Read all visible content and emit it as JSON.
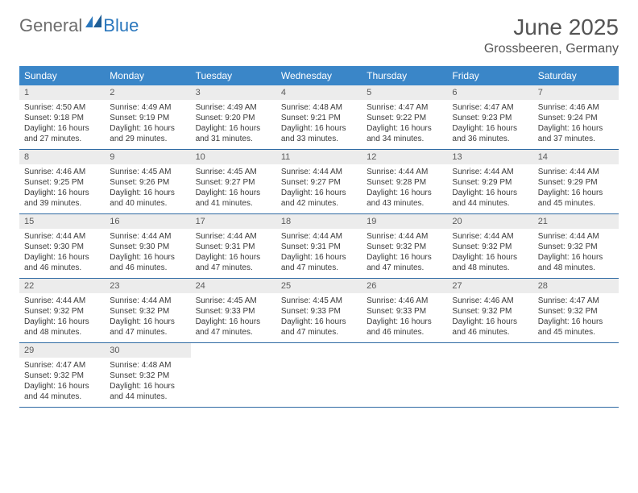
{
  "logo": {
    "general": "General",
    "blue": "Blue"
  },
  "title": "June 2025",
  "location": "Grossbeeren, Germany",
  "colors": {
    "header_bg": "#3a86c8",
    "header_fg": "#ffffff",
    "daynum_bg": "#ececec",
    "row_border": "#2f6aa3",
    "logo_gray": "#6d6d6d",
    "logo_blue": "#2a77bd",
    "text": "#3a3a3a",
    "title_color": "#545454",
    "page_bg": "#ffffff"
  },
  "weekdays": [
    "Sunday",
    "Monday",
    "Tuesday",
    "Wednesday",
    "Thursday",
    "Friday",
    "Saturday"
  ],
  "weeks": [
    [
      {
        "n": "1",
        "sunrise": "4:50 AM",
        "sunset": "9:18 PM",
        "daylight": "16 hours and 27 minutes."
      },
      {
        "n": "2",
        "sunrise": "4:49 AM",
        "sunset": "9:19 PM",
        "daylight": "16 hours and 29 minutes."
      },
      {
        "n": "3",
        "sunrise": "4:49 AM",
        "sunset": "9:20 PM",
        "daylight": "16 hours and 31 minutes."
      },
      {
        "n": "4",
        "sunrise": "4:48 AM",
        "sunset": "9:21 PM",
        "daylight": "16 hours and 33 minutes."
      },
      {
        "n": "5",
        "sunrise": "4:47 AM",
        "sunset": "9:22 PM",
        "daylight": "16 hours and 34 minutes."
      },
      {
        "n": "6",
        "sunrise": "4:47 AM",
        "sunset": "9:23 PM",
        "daylight": "16 hours and 36 minutes."
      },
      {
        "n": "7",
        "sunrise": "4:46 AM",
        "sunset": "9:24 PM",
        "daylight": "16 hours and 37 minutes."
      }
    ],
    [
      {
        "n": "8",
        "sunrise": "4:46 AM",
        "sunset": "9:25 PM",
        "daylight": "16 hours and 39 minutes."
      },
      {
        "n": "9",
        "sunrise": "4:45 AM",
        "sunset": "9:26 PM",
        "daylight": "16 hours and 40 minutes."
      },
      {
        "n": "10",
        "sunrise": "4:45 AM",
        "sunset": "9:27 PM",
        "daylight": "16 hours and 41 minutes."
      },
      {
        "n": "11",
        "sunrise": "4:44 AM",
        "sunset": "9:27 PM",
        "daylight": "16 hours and 42 minutes."
      },
      {
        "n": "12",
        "sunrise": "4:44 AM",
        "sunset": "9:28 PM",
        "daylight": "16 hours and 43 minutes."
      },
      {
        "n": "13",
        "sunrise": "4:44 AM",
        "sunset": "9:29 PM",
        "daylight": "16 hours and 44 minutes."
      },
      {
        "n": "14",
        "sunrise": "4:44 AM",
        "sunset": "9:29 PM",
        "daylight": "16 hours and 45 minutes."
      }
    ],
    [
      {
        "n": "15",
        "sunrise": "4:44 AM",
        "sunset": "9:30 PM",
        "daylight": "16 hours and 46 minutes."
      },
      {
        "n": "16",
        "sunrise": "4:44 AM",
        "sunset": "9:30 PM",
        "daylight": "16 hours and 46 minutes."
      },
      {
        "n": "17",
        "sunrise": "4:44 AM",
        "sunset": "9:31 PM",
        "daylight": "16 hours and 47 minutes."
      },
      {
        "n": "18",
        "sunrise": "4:44 AM",
        "sunset": "9:31 PM",
        "daylight": "16 hours and 47 minutes."
      },
      {
        "n": "19",
        "sunrise": "4:44 AM",
        "sunset": "9:32 PM",
        "daylight": "16 hours and 47 minutes."
      },
      {
        "n": "20",
        "sunrise": "4:44 AM",
        "sunset": "9:32 PM",
        "daylight": "16 hours and 48 minutes."
      },
      {
        "n": "21",
        "sunrise": "4:44 AM",
        "sunset": "9:32 PM",
        "daylight": "16 hours and 48 minutes."
      }
    ],
    [
      {
        "n": "22",
        "sunrise": "4:44 AM",
        "sunset": "9:32 PM",
        "daylight": "16 hours and 48 minutes."
      },
      {
        "n": "23",
        "sunrise": "4:44 AM",
        "sunset": "9:32 PM",
        "daylight": "16 hours and 47 minutes."
      },
      {
        "n": "24",
        "sunrise": "4:45 AM",
        "sunset": "9:33 PM",
        "daylight": "16 hours and 47 minutes."
      },
      {
        "n": "25",
        "sunrise": "4:45 AM",
        "sunset": "9:33 PM",
        "daylight": "16 hours and 47 minutes."
      },
      {
        "n": "26",
        "sunrise": "4:46 AM",
        "sunset": "9:33 PM",
        "daylight": "16 hours and 46 minutes."
      },
      {
        "n": "27",
        "sunrise": "4:46 AM",
        "sunset": "9:32 PM",
        "daylight": "16 hours and 46 minutes."
      },
      {
        "n": "28",
        "sunrise": "4:47 AM",
        "sunset": "9:32 PM",
        "daylight": "16 hours and 45 minutes."
      }
    ],
    [
      {
        "n": "29",
        "sunrise": "4:47 AM",
        "sunset": "9:32 PM",
        "daylight": "16 hours and 44 minutes."
      },
      {
        "n": "30",
        "sunrise": "4:48 AM",
        "sunset": "9:32 PM",
        "daylight": "16 hours and 44 minutes."
      },
      null,
      null,
      null,
      null,
      null
    ]
  ],
  "labels": {
    "sunrise": "Sunrise:",
    "sunset": "Sunset:",
    "daylight": "Daylight:"
  }
}
